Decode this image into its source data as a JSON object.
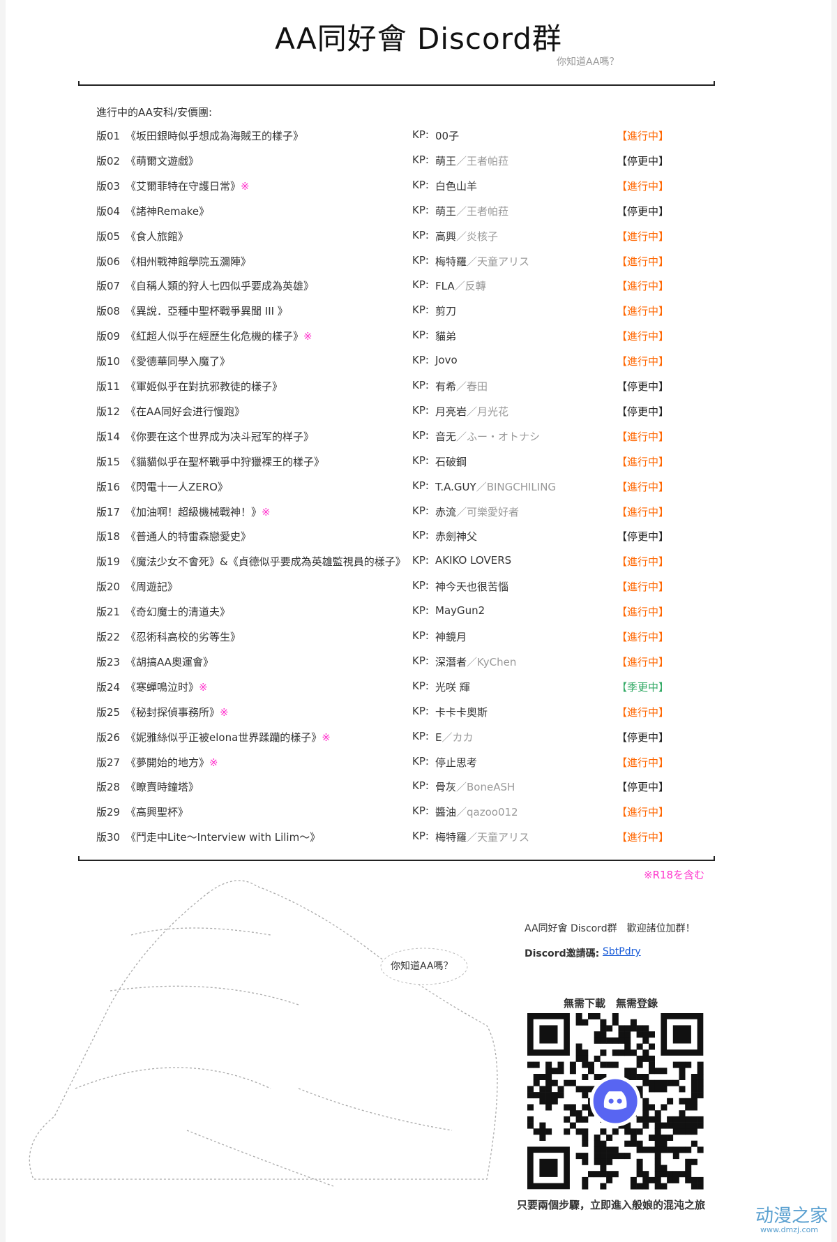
{
  "header": {
    "title": "AA同好會 Discord群",
    "subtitle": "你知道AA嗎？"
  },
  "list": {
    "heading": "進行中的AA安科/安價團:",
    "kp_label": "KP:",
    "rows": [
      {
        "no": "版01",
        "title": "《坂田銀時似乎想成為海賊王的樣子》",
        "kp": "00子",
        "status": "【進行中】"
      },
      {
        "no": "版02",
        "title": "《萌爾文遊戲》",
        "kp": "萌王",
        "kp_alt": "／王者帕菈",
        "status": "【停更中】"
      },
      {
        "no": "版03",
        "title": "《艾爾菲特在守護日常》",
        "mark": "※",
        "kp": "白色山羊",
        "status": "【進行中】"
      },
      {
        "no": "版04",
        "title": "《諸神Remake》",
        "kp": "萌王",
        "kp_alt": "／王者帕菈",
        "status": "【停更中】"
      },
      {
        "no": "版05",
        "title": "《食人旅館》",
        "kp": "高興",
        "kp_alt": "／炎核子",
        "status": "【進行中】"
      },
      {
        "no": "版06",
        "title": "《相州戰神館學院五瀰陣》",
        "kp": "梅特羅",
        "kp_alt": "／天童アリス",
        "status": "【進行中】"
      },
      {
        "no": "版07",
        "title": "《自稱人類的狩人七四似乎要成為英雄》",
        "kp": "FLA",
        "kp_alt": "／反轉",
        "status": "【進行中】"
      },
      {
        "no": "版08",
        "title": "《異說．亞種中聖杯戰爭異聞 III 》",
        "kp": "剪刀",
        "status": "【進行中】"
      },
      {
        "no": "版09",
        "title": "《紅超人似乎在經歷生化危機的樣子》",
        "mark": "※",
        "kp": "貓弟",
        "status": "【進行中】"
      },
      {
        "no": "版10",
        "title": "《愛德華同學入魔了》",
        "kp": "Jovo",
        "status": "【進行中】"
      },
      {
        "no": "版11",
        "title": "《軍姬似乎在對抗邪教徒的樣子》",
        "kp": "有希",
        "kp_alt": "／春田",
        "status": "【停更中】"
      },
      {
        "no": "版12",
        "title": "《在AA同好会进行慢跑》",
        "kp": "月亮岩",
        "kp_alt": "／月光花",
        "status": "【停更中】"
      },
      {
        "no": "版14",
        "title": "《你要在这个世界成为决斗冠军的样子》",
        "kp": "音无",
        "kp_alt": "／ふー・オトナシ",
        "status": "【進行中】"
      },
      {
        "no": "版15",
        "title": "《貓貓似乎在聖杯戰爭中狩獵裸王的樣子》",
        "kp": "石破鋼",
        "status": "【進行中】"
      },
      {
        "no": "版16",
        "title": "《閃電十一人ZERO》",
        "kp": "T.A.GUY",
        "kp_alt": "／BINGCHILING",
        "status": "【進行中】"
      },
      {
        "no": "版17",
        "title": "《加油啊！超級機械戰神！》",
        "mark": "※",
        "kp": "赤流",
        "kp_alt": "／可樂愛好者",
        "status": "【進行中】"
      },
      {
        "no": "版18",
        "title": "《普通人的特雷森戀愛史》",
        "kp": "赤劍神父",
        "status": "【停更中】"
      },
      {
        "no": "版19",
        "title": "《魔法少女不會死》&《貞德似乎要成為英雄監視員的樣子》",
        "kp": "AKIKO LOVERS",
        "status": "【進行中】"
      },
      {
        "no": "版20",
        "title": "《周遊記》",
        "kp": "神今天也很苦惱",
        "status": "【進行中】"
      },
      {
        "no": "版21",
        "title": "《奇幻魔士的清道夫》",
        "kp": "MayGun2",
        "status": "【進行中】"
      },
      {
        "no": "版22",
        "title": "《忍術科高校的劣等生》",
        "kp": "神鏡月",
        "status": "【進行中】"
      },
      {
        "no": "版23",
        "title": "《胡搞AA奧運會》",
        "kp": "深潛者",
        "kp_alt": "／KyChen",
        "status": "【進行中】"
      },
      {
        "no": "版24",
        "title": "《寒蟬鳴泣时》",
        "mark": "※",
        "kp": "光咲 輝",
        "status": "【季更中】"
      },
      {
        "no": "版25",
        "title": "《秘封探偵事務所》",
        "mark": "※",
        "kp": "卡卡卡奧斯",
        "status": "【進行中】"
      },
      {
        "no": "版26",
        "title": "《妮雅絲似乎正被elona世界蹂躪的樣子》",
        "mark": "※",
        "kp": "E",
        "kp_alt": "／カカ",
        "status": "【停更中】"
      },
      {
        "no": "版27",
        "title": "《夢開始的地方》",
        "mark": "※",
        "kp": "停止思考",
        "status": "【進行中】"
      },
      {
        "no": "版28",
        "title": "《瞭賣時鐘塔》",
        "kp": "骨灰",
        "kp_alt": "／BoneASH",
        "status": "【停更中】"
      },
      {
        "no": "版29",
        "title": "《高興聖杯》",
        "kp": "醬油",
        "kp_alt": "／qazoo012",
        "status": "【進行中】"
      },
      {
        "no": "版30",
        "title": "《鬥走中Lite～Interview with Lilim～》",
        "kp": "梅特羅",
        "kp_alt": "／天童アリス",
        "status": "【進行中】"
      }
    ],
    "note": "※R18を含む"
  },
  "footer": {
    "speech": "你知道AA嗎？",
    "welcome": "AA同好會 Discord群　歡迎諸位加群！",
    "invite_label": "Discord邀請碼:",
    "invite_code": "SbtPdry",
    "qr_caption": "無需下載　無需登錄",
    "bottom": "只要兩個步驟，立即進入般娘的混沌之旅",
    "watermark": "动漫之家",
    "watermark_url": "www.dmzj.com"
  }
}
